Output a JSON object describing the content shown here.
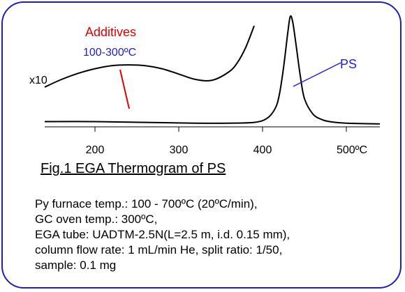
{
  "chart_data": {
    "type": "line",
    "title": "",
    "xlabel": "",
    "ylabel": "",
    "xlim": [
      140,
      540
    ],
    "x_ticks": [
      200,
      300,
      400,
      500
    ],
    "x_tick_labels": [
      "200",
      "300",
      "400",
      "500ºC"
    ],
    "grid": false,
    "series": [
      {
        "name": "",
        "x": [
          140,
          160,
          180,
          200,
          220,
          240,
          260,
          280,
          300,
          320,
          340,
          360,
          370,
          380,
          390
        ],
        "values": [
          0.5,
          0.6,
          0.68,
          0.74,
          0.78,
          0.79,
          0.78,
          0.74,
          0.67,
          0.6,
          0.59,
          0.7,
          0.82,
          1.02,
          1.3
        ]
      },
      {
        "name": "",
        "x": [
          140,
          200,
          260,
          320,
          360,
          390,
          405,
          415,
          420,
          425,
          430,
          433,
          436,
          440,
          445,
          450,
          460,
          470,
          480,
          500,
          540
        ],
        "values": [
          0.05,
          0.05,
          0.04,
          0.03,
          0.03,
          0.04,
          0.09,
          0.22,
          0.4,
          0.75,
          1.2,
          1.42,
          1.35,
          1.05,
          0.65,
          0.35,
          0.15,
          0.08,
          0.05,
          0.03,
          0.02
        ]
      }
    ],
    "annotations": [
      {
        "text": "Additives",
        "color": "#e00000"
      },
      {
        "text": "100-300ºC",
        "color": "#2020d0"
      },
      {
        "text": "x10",
        "color": "#000000"
      },
      {
        "text": "PS",
        "color": "#2020d0"
      }
    ]
  },
  "caption": "Fig.1 EGA Thermogram of PS",
  "conditions": [
    "Py furnace temp.: 100 - 700ºC (20ºC/min),",
    "GC oven temp.: 300ºC,",
    "EGA tube: UADTM-2.5N(L=2.5 m, i.d. 0.15 mm),",
    "column flow rate: 1 mL/min He, split ratio: 1/50,",
    "sample: 0.1 mg"
  ],
  "colors": {
    "border": "#1f1fb0",
    "additives_label": "#e00000",
    "temperature_label": "#2020d0",
    "ps_label": "#2020d0",
    "pointer_red": "#e00000",
    "pointer_blue": "#2020d0",
    "curve": "#000000"
  }
}
